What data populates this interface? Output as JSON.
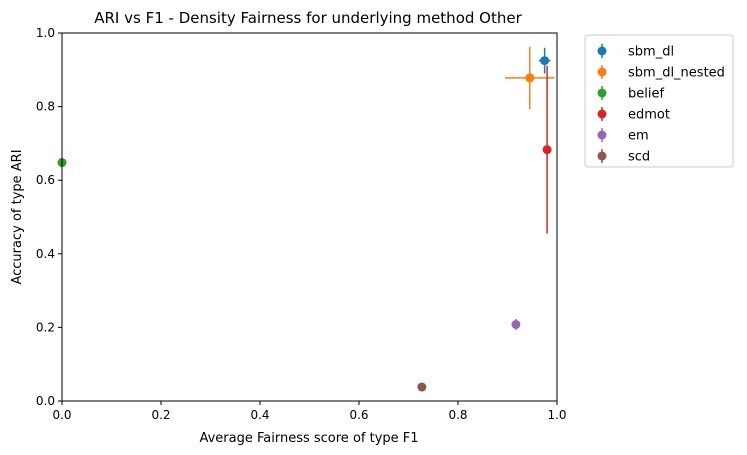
{
  "chart_data": {
    "type": "scatter",
    "title": "ARI vs F1 - Density Fairness for underlying method Other",
    "xlabel": "Average Fairness score of type F1",
    "ylabel": "Accuracy of type ARI",
    "xlim": [
      0.0,
      1.0
    ],
    "ylim": [
      0.0,
      1.0
    ],
    "xticks": [
      "0.0",
      "0.2",
      "0.4",
      "0.6",
      "0.8",
      "1.0"
    ],
    "yticks": [
      "0.0",
      "0.2",
      "0.4",
      "0.6",
      "0.8",
      "1.0"
    ],
    "grid": false,
    "legend_position": "outside upper right",
    "series": [
      {
        "name": "sbm_dl",
        "color": "#1f77b4",
        "x": 0.975,
        "y": 0.925,
        "xerr": 0.012,
        "yerr": 0.035
      },
      {
        "name": "sbm_dl_nested",
        "color": "#ff7f0e",
        "x": 0.945,
        "y": 0.878,
        "xerr": 0.05,
        "yerr": 0.085
      },
      {
        "name": "belief",
        "color": "#2ca02c",
        "x": 0.0,
        "y": 0.648,
        "xerr": 0.0,
        "yerr": 0.0
      },
      {
        "name": "edmot",
        "color": "#d62728",
        "x": 0.98,
        "y": 0.683,
        "xerr": 0.006,
        "yerr": 0.228
      },
      {
        "name": "em",
        "color": "#9467bd",
        "x": 0.917,
        "y": 0.208,
        "xerr": 0.0,
        "yerr": 0.015
      },
      {
        "name": "scd",
        "color": "#8c564b",
        "x": 0.727,
        "y": 0.038,
        "xerr": 0.0,
        "yerr": 0.0
      }
    ]
  }
}
